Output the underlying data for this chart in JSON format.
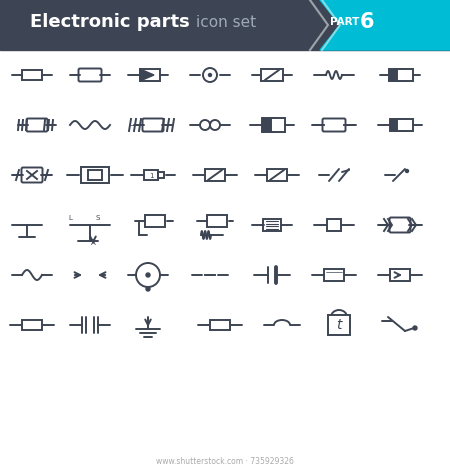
{
  "title": "Electronic parts",
  "subtitle": "icon set",
  "part": "PART",
  "part_num": "6",
  "bg_header": "#3d4554",
  "bg_cyan": "#00bcd4",
  "title_color": "#ffffff",
  "subtitle_color": "#9eaab8",
  "symbol_color": "#3d4554",
  "symbol_lw": 1.4,
  "footer_text": "735929326",
  "footer_color": "#aaaaaa"
}
